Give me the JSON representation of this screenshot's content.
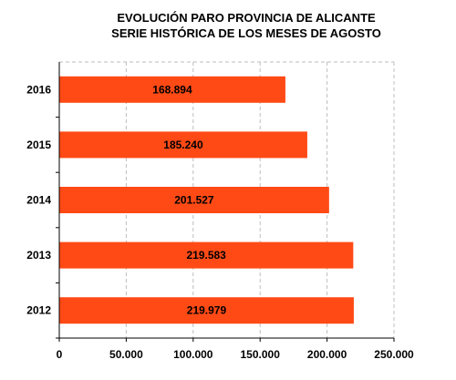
{
  "chart_data": {
    "type": "bar",
    "orientation": "horizontal",
    "title": "EVOLUCIÓN PARO PROVINCIA DE ALICANTE",
    "subtitle": "SERIE HISTÓRICA DE LOS MESES DE AGOSTO",
    "categories": [
      "2016",
      "2015",
      "2014",
      "2013",
      "2012"
    ],
    "values": [
      168894,
      185240,
      201527,
      219583,
      219979
    ],
    "data_labels": [
      "168.894",
      "185.240",
      "201.527",
      "219.583",
      "219.979"
    ],
    "xlim": [
      0,
      250000
    ],
    "x_ticks": [
      0,
      50000,
      100000,
      150000,
      200000,
      250000
    ],
    "x_tick_labels": [
      "0",
      "50.000",
      "100.000",
      "150.000",
      "200.000",
      "250.000"
    ],
    "grid": "vertical dashed",
    "bar_color": "#ff4a16"
  }
}
